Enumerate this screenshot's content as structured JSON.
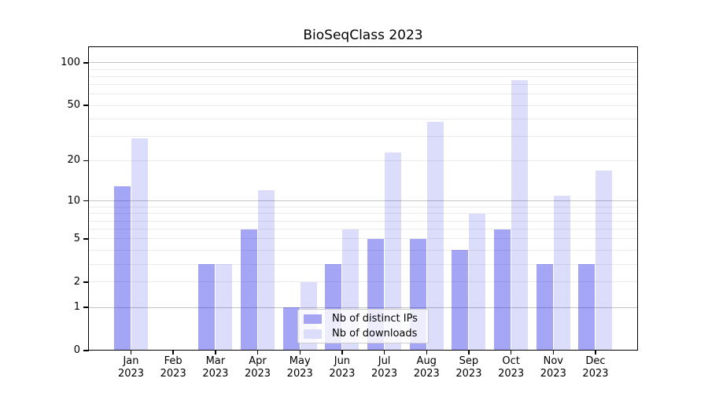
{
  "chart_data": {
    "type": "bar",
    "title": "BioSeqClass 2023",
    "categories": [
      "Jan",
      "Feb",
      "Mar",
      "Apr",
      "May",
      "Jun",
      "Jul",
      "Aug",
      "Sep",
      "Oct",
      "Nov",
      "Dec"
    ],
    "year_label": "2023",
    "series": [
      {
        "name": "Nb of distinct IPs",
        "color": "rgba(40,40,230,0.42)",
        "swatch": "#a5a5f4",
        "values": [
          13,
          0,
          3,
          6,
          1,
          3,
          5,
          5,
          4,
          6,
          3,
          3
        ]
      },
      {
        "name": "Nb of downloads",
        "color": "rgba(40,40,230,0.16)",
        "swatch": "#dcdcfb",
        "values": [
          29,
          0,
          3,
          12,
          2,
          6,
          23,
          38,
          8,
          75,
          11,
          17
        ]
      }
    ],
    "xlabel": "",
    "ylabel": "",
    "yscale": "log1p",
    "ylim": [
      0,
      131
    ],
    "ytick_values": [
      0,
      1,
      2,
      5,
      10,
      20,
      50,
      100
    ],
    "ytick_labels": [
      "0",
      "1",
      "2",
      "5",
      "10",
      "20",
      "50",
      "100"
    ],
    "major_gridlines": [
      1,
      10,
      100
    ],
    "minor_gridlines": [
      2,
      3,
      4,
      5,
      6,
      7,
      8,
      9,
      20,
      30,
      40,
      50,
      60,
      70,
      80,
      90
    ],
    "grid": true,
    "legend_position": "lower-center"
  }
}
